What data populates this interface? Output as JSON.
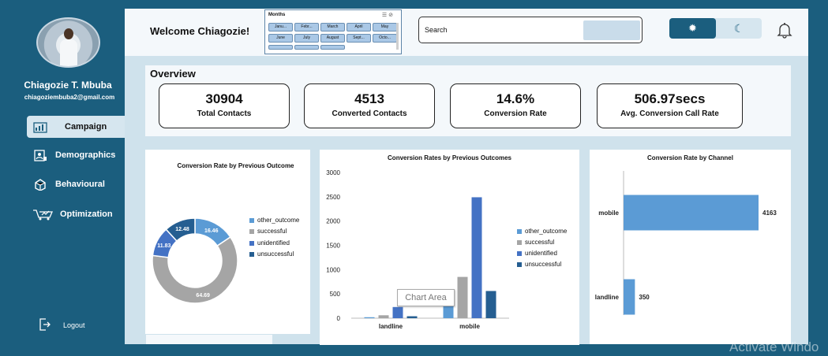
{
  "user": {
    "name": "Chiagozie T. Mbuba",
    "email": "chiagoziembuba2@gmail.com"
  },
  "nav": {
    "campaign": "Campaign",
    "demographics": "Demographics",
    "behavioural": "Behavioural",
    "optimization": "Optimization",
    "logout": "Logout"
  },
  "header": {
    "welcome": "Welcome Chiagozie!",
    "search_placeholder": "Search"
  },
  "slicer": {
    "title": "Months",
    "items": [
      "Janu...",
      "Febr...",
      "March",
      "April",
      "May",
      "June",
      "July",
      "August",
      "Sept...",
      "Octo..."
    ]
  },
  "overview": {
    "title": "Overview",
    "kpis": [
      {
        "value": "30904",
        "label": "Total Contacts"
      },
      {
        "value": "4513",
        "label": "Converted Contacts"
      },
      {
        "value": "14.6%",
        "label": "Conversion Rate"
      },
      {
        "value": "506.97secs",
        "label": "Avg. Conversion Call Rate"
      }
    ]
  },
  "colors": {
    "accent": "#1b5e7e",
    "other_outcome": "#5b9bd5",
    "successful": "#a5a5a5",
    "unidentified": "#4472c4",
    "unsuccessful": "#255e91"
  },
  "tooltip": "Chart Area",
  "watermark": "Activate Windo",
  "chart_data": [
    {
      "type": "pie",
      "title": "Conversion Rate by Previous Outcome",
      "series": [
        {
          "values": [
            16.46,
            64.69,
            11.83,
            12.48
          ]
        }
      ],
      "labels": [
        "16.46",
        "64.69",
        "11.83",
        "12.48"
      ],
      "legend": [
        "other_outcome",
        "successful",
        "unidentified",
        "unsuccessful"
      ],
      "legend_position": "right"
    },
    {
      "type": "bar",
      "title": "Conversion Rates by Previous Outcomes",
      "categories": [
        "landline",
        "mobile"
      ],
      "series": [
        {
          "name": "other_outcome",
          "values": [
            20,
            270
          ]
        },
        {
          "name": "successful",
          "values": [
            60,
            850
          ]
        },
        {
          "name": "unidentified",
          "values": [
            230,
            2490
          ]
        },
        {
          "name": "unsuccessful",
          "values": [
            40,
            560
          ]
        }
      ],
      "ylim": [
        0,
        3000
      ],
      "yticks": [
        "0",
        "500",
        "1000",
        "1500",
        "2000",
        "2500",
        "3000"
      ],
      "legend_position": "right"
    },
    {
      "type": "bar",
      "orientation": "horizontal",
      "title": "Conversion Rate by Channel",
      "categories": [
        "mobile",
        "landline"
      ],
      "values": [
        4163,
        350
      ],
      "data_labels": [
        "4163",
        "350"
      ]
    }
  ]
}
